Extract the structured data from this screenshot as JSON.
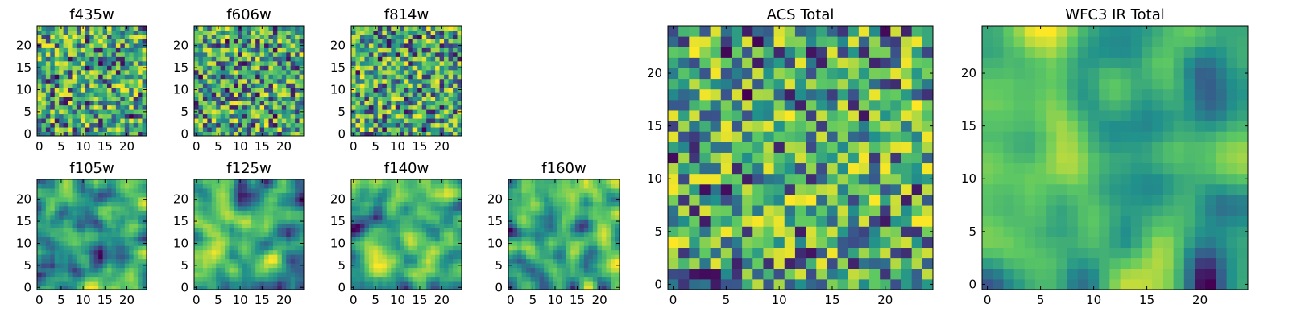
{
  "figure": {
    "description_free": true,
    "colormap": [
      "#440154",
      "#3b528b",
      "#21918c",
      "#5ec962",
      "#fde725"
    ]
  },
  "chart_data": [
    {
      "type": "heatmap",
      "title": "f435w",
      "grid_size": 25,
      "smoothness": 0,
      "seed": 11,
      "xticks": [
        "0",
        "5",
        "10",
        "15",
        "20"
      ],
      "yticks": [
        "0",
        "5",
        "10",
        "15",
        "20"
      ],
      "xlim": [
        0,
        25
      ],
      "ylim": [
        0,
        25
      ],
      "value_range": [
        0,
        1
      ]
    },
    {
      "type": "heatmap",
      "title": "f606w",
      "grid_size": 25,
      "smoothness": 0,
      "seed": 23,
      "xticks": [
        "0",
        "5",
        "10",
        "15",
        "20"
      ],
      "yticks": [
        "0",
        "5",
        "10",
        "15",
        "20"
      ],
      "xlim": [
        0,
        25
      ],
      "ylim": [
        0,
        25
      ],
      "value_range": [
        0,
        1
      ]
    },
    {
      "type": "heatmap",
      "title": "f814w",
      "grid_size": 25,
      "smoothness": 0,
      "seed": 37,
      "xticks": [
        "0",
        "5",
        "10",
        "15",
        "20"
      ],
      "yticks": [
        "0",
        "5",
        "10",
        "15",
        "20"
      ],
      "xlim": [
        0,
        25
      ],
      "ylim": [
        0,
        25
      ],
      "value_range": [
        0,
        1
      ]
    },
    {
      "type": "heatmap",
      "title": "f105w",
      "grid_size": 25,
      "smoothness": 2,
      "seed": 41,
      "xticks": [
        "0",
        "5",
        "10",
        "15",
        "20"
      ],
      "yticks": [
        "0",
        "5",
        "10",
        "15",
        "20"
      ],
      "xlim": [
        0,
        25
      ],
      "ylim": [
        0,
        25
      ],
      "value_range": [
        0,
        1
      ]
    },
    {
      "type": "heatmap",
      "title": "f125w",
      "grid_size": 25,
      "smoothness": 2,
      "seed": 53,
      "xticks": [
        "0",
        "5",
        "10",
        "15",
        "20"
      ],
      "yticks": [
        "0",
        "5",
        "10",
        "15",
        "20"
      ],
      "xlim": [
        0,
        25
      ],
      "ylim": [
        0,
        25
      ],
      "value_range": [
        0,
        1
      ]
    },
    {
      "type": "heatmap",
      "title": "f140w",
      "grid_size": 25,
      "smoothness": 2,
      "seed": 67,
      "xticks": [
        "0",
        "5",
        "10",
        "15",
        "20"
      ],
      "yticks": [
        "0",
        "5",
        "10",
        "15",
        "20"
      ],
      "xlim": [
        0,
        25
      ],
      "ylim": [
        0,
        25
      ],
      "value_range": [
        0,
        1
      ]
    },
    {
      "type": "heatmap",
      "title": "f160w",
      "grid_size": 25,
      "smoothness": 2,
      "seed": 79,
      "xticks": [
        "0",
        "5",
        "10",
        "15",
        "20"
      ],
      "yticks": [
        "0",
        "5",
        "10",
        "15",
        "20"
      ],
      "xlim": [
        0,
        25
      ],
      "ylim": [
        0,
        25
      ],
      "value_range": [
        0,
        1
      ]
    },
    {
      "type": "heatmap",
      "title": "ACS Total",
      "grid_size": 25,
      "smoothness": 0,
      "seed": 97,
      "xticks": [
        "0",
        "5",
        "10",
        "15",
        "20"
      ],
      "yticks": [
        "0",
        "5",
        "10",
        "15",
        "20"
      ],
      "xlim": [
        0,
        25
      ],
      "ylim": [
        0,
        25
      ],
      "value_range": [
        0,
        1
      ]
    },
    {
      "type": "heatmap",
      "title": "WFC3 IR Total",
      "grid_size": 25,
      "smoothness": 3,
      "seed": 131,
      "xticks": [
        "0",
        "5",
        "10",
        "15",
        "20"
      ],
      "yticks": [
        "0",
        "5",
        "10",
        "15",
        "20"
      ],
      "xlim": [
        0,
        25
      ],
      "ylim": [
        0,
        25
      ],
      "value_range": [
        0,
        1
      ]
    }
  ]
}
